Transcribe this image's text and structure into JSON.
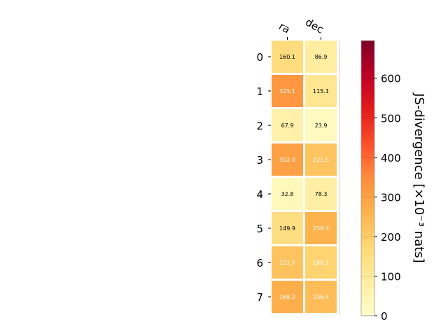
{
  "chart_data": {
    "type": "heatmap",
    "x_categories": [
      "ra",
      "dec"
    ],
    "y_categories": [
      "0",
      "1",
      "2",
      "3",
      "4",
      "5",
      "6",
      "7"
    ],
    "values": [
      [
        160.1,
        86.9
      ],
      [
        325.1,
        115.1
      ],
      [
        67.9,
        23.9
      ],
      [
        302.0,
        221.5
      ],
      [
        32.8,
        78.3
      ],
      [
        149.9,
        259.4
      ],
      [
        221.7,
        186.1
      ],
      [
        268.2,
        236.4
      ]
    ],
    "value_labels": [
      [
        "160.1",
        "86.9"
      ],
      [
        "325.1",
        "115.1"
      ],
      [
        "67.9",
        "23.9"
      ],
      [
        "302.0",
        "221.5"
      ],
      [
        "32.8",
        "78.3"
      ],
      [
        "149.9",
        "259.4"
      ],
      [
        "221.7",
        "186.1"
      ],
      [
        "268.2",
        "236.4"
      ]
    ],
    "colormap": "YlOrRd",
    "colorbar": {
      "label": "JS-divergence [×10⁻³ nats]",
      "range": [
        0,
        695
      ],
      "ticks": [
        0,
        100,
        200,
        300,
        400,
        500,
        600
      ],
      "tick_labels": [
        "0",
        "100",
        "200",
        "300",
        "400",
        "500",
        "600"
      ]
    },
    "grid": false
  }
}
